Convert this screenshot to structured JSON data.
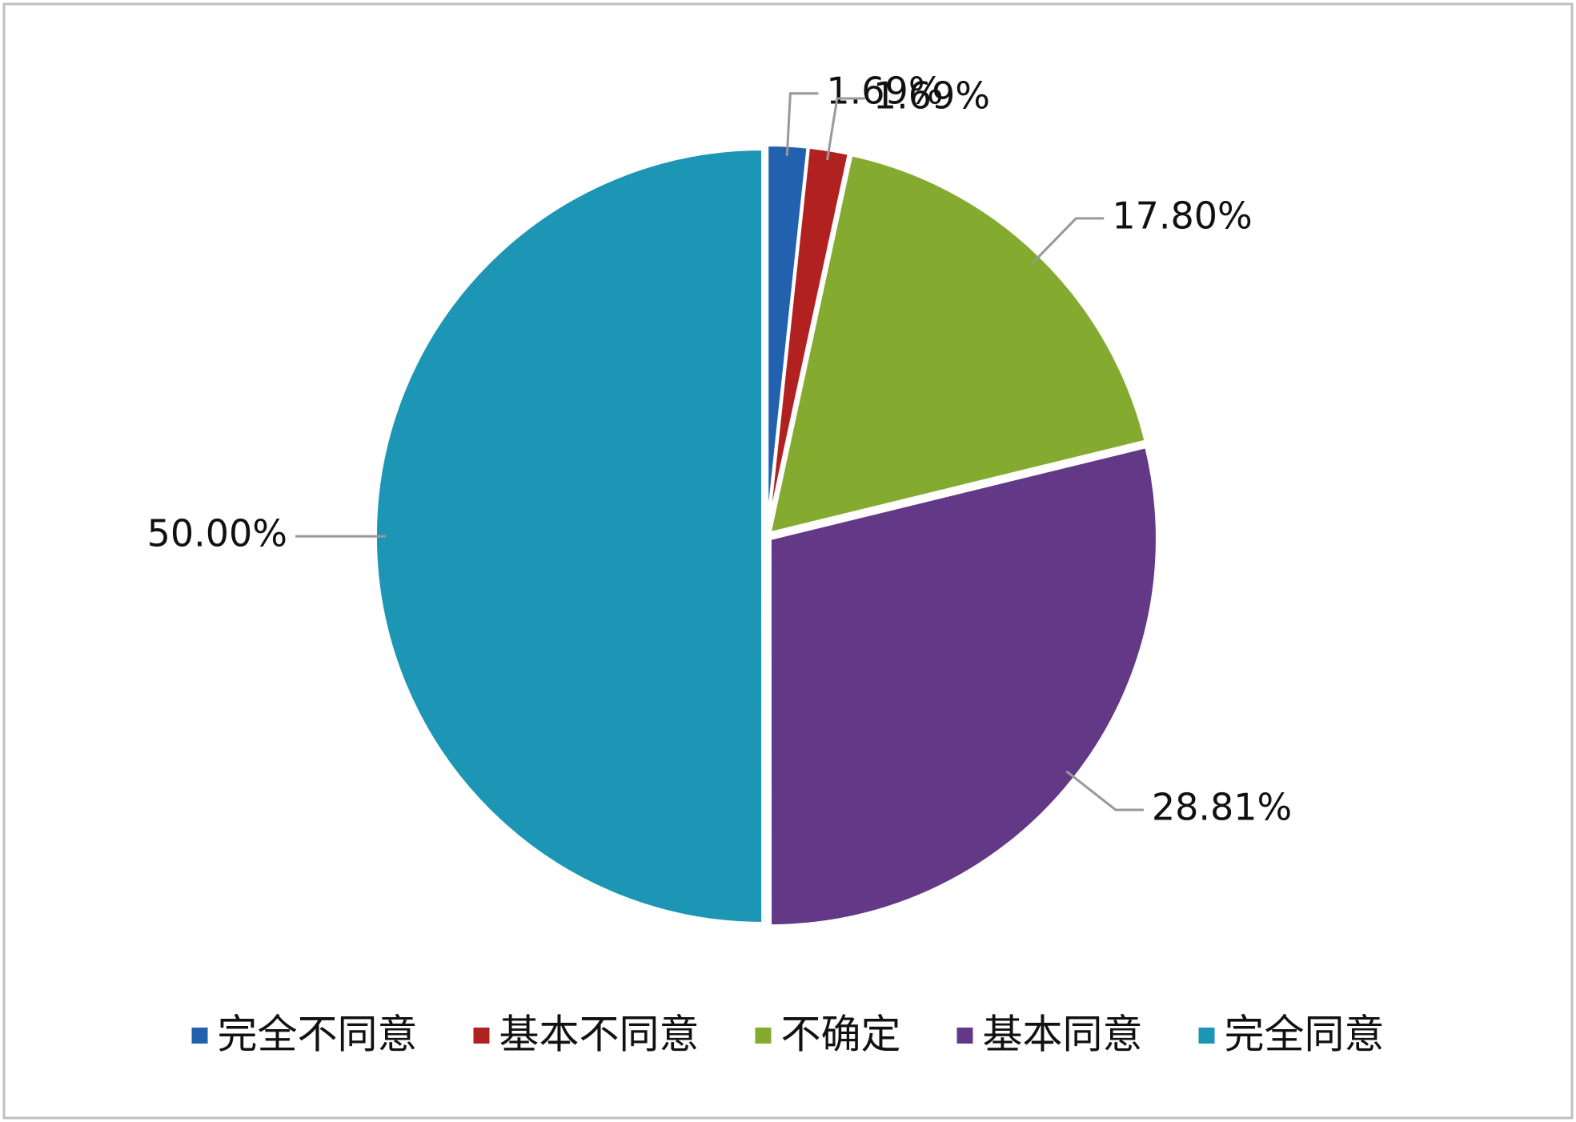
{
  "chart_data": {
    "type": "pie",
    "categories": [
      "完全不同意",
      "基本不同意",
      "不确定",
      "基本同意",
      "完全同意"
    ],
    "values": [
      1.69,
      1.69,
      17.8,
      28.81,
      50.0
    ],
    "value_labels": [
      "1.69%",
      "1.69%",
      "17.80%",
      "28.81%",
      "50.00%"
    ],
    "colors": [
      "#2161ad",
      "#b0211f",
      "#84ab2f",
      "#623887",
      "#1d95b5"
    ],
    "legend": "bottom"
  }
}
